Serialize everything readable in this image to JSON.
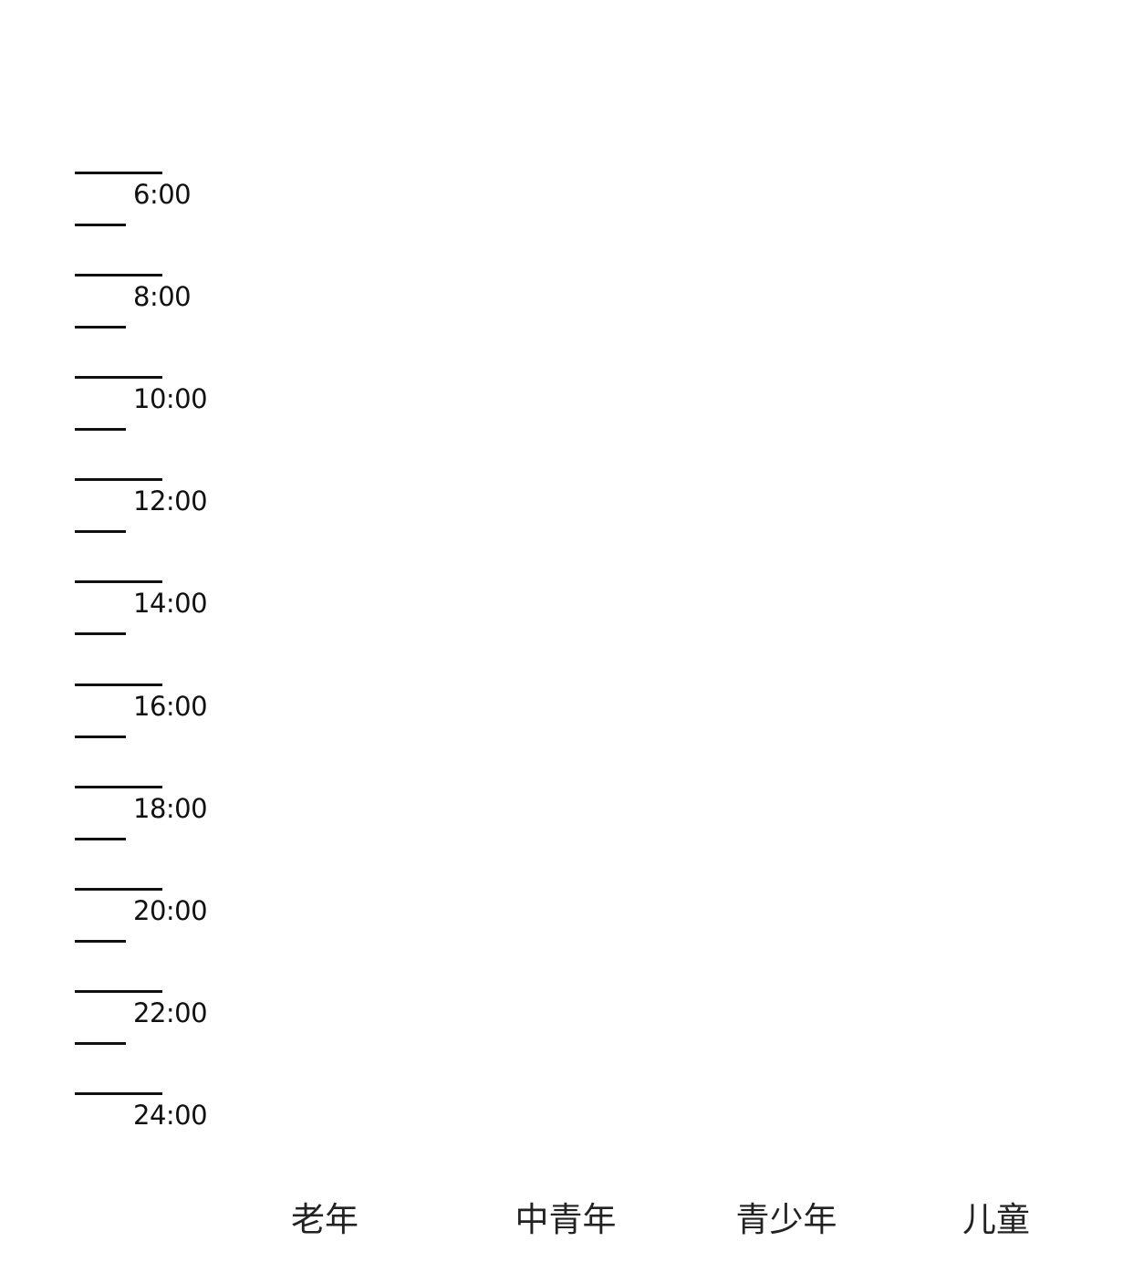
{
  "time_axis": {
    "labels": [
      "6:00",
      "8:00",
      "10:00",
      "12:00",
      "14:00",
      "16:00",
      "18:00",
      "20:00",
      "22:00",
      "24:00"
    ]
  },
  "categories": [
    "老年",
    "中青年",
    "青少年",
    "儿童"
  ]
}
